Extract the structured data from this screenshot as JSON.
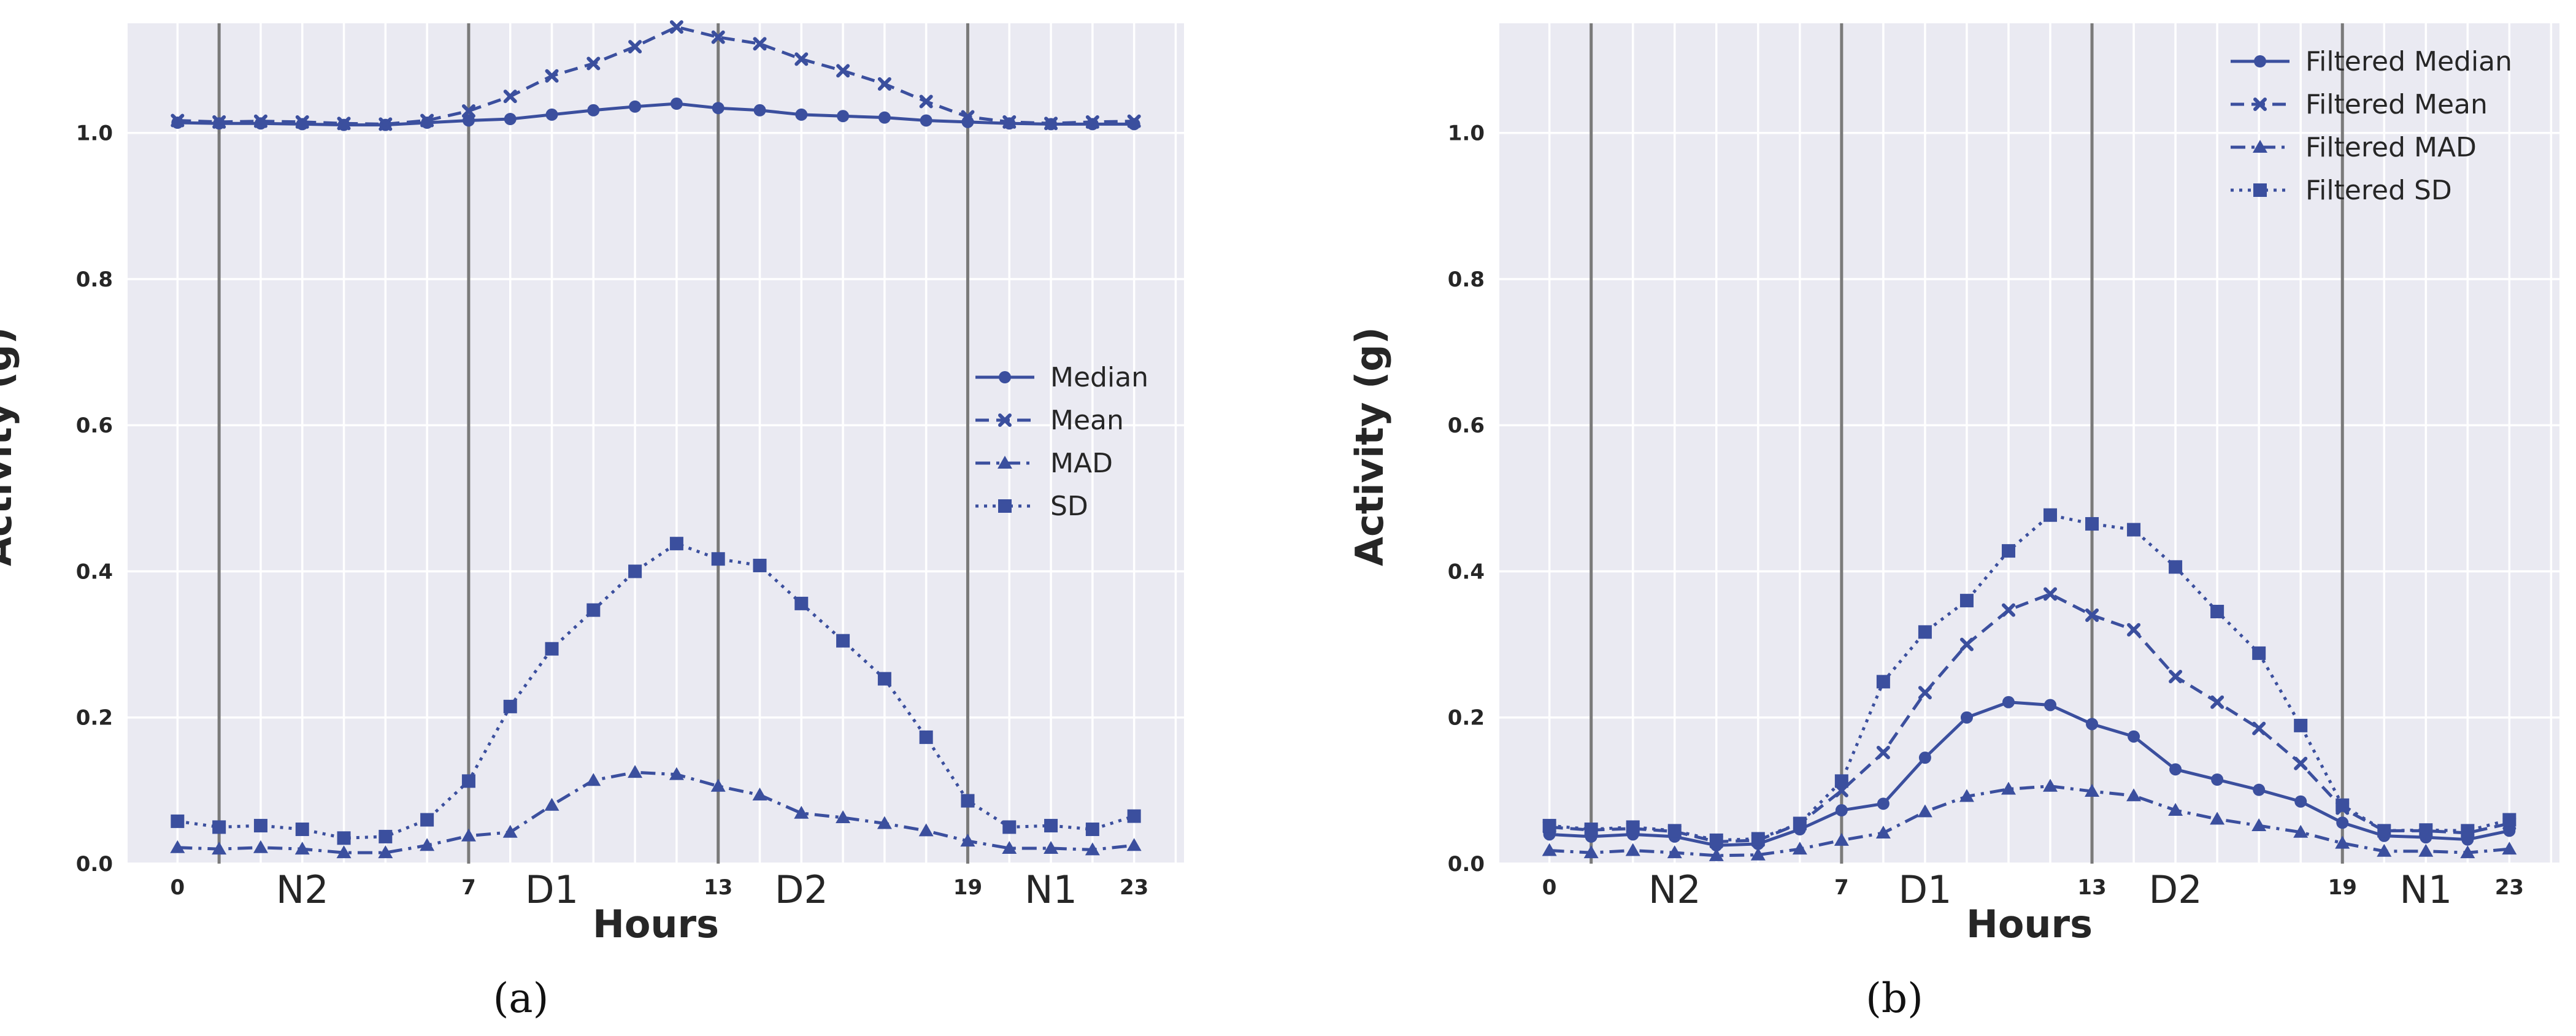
{
  "colors": {
    "series": "#3b4f9e",
    "background": "#eaeaf2",
    "grid": "#ffffff",
    "vline": "#7a7a7a"
  },
  "chart_data": [
    {
      "type": "line",
      "caption": "(a)",
      "xlabel": "Hours",
      "ylabel": "Activity (g)",
      "xlim": [
        -1.2,
        24.2
      ],
      "ylim": [
        0,
        1.15
      ],
      "yticks": [
        0.0,
        0.2,
        0.4,
        0.6,
        0.8,
        1.0
      ],
      "ytick_labels": [
        "0.0",
        "0.2",
        "0.4",
        "0.6",
        "0.8",
        "1.0"
      ],
      "xticks": [
        0,
        7,
        13,
        19,
        23
      ],
      "xtick_labels": [
        "0",
        "7",
        "13",
        "19",
        "23"
      ],
      "vlines": [
        1,
        7,
        13,
        19
      ],
      "period_labels": [
        {
          "x": 3,
          "label": "N2"
        },
        {
          "x": 9,
          "label": "D1"
        },
        {
          "x": 15,
          "label": "D2"
        },
        {
          "x": 21,
          "label": "N1"
        }
      ],
      "legend_position": "center-right",
      "x": [
        0,
        1,
        2,
        3,
        4,
        5,
        6,
        7,
        8,
        9,
        10,
        11,
        12,
        13,
        14,
        15,
        16,
        17,
        18,
        19,
        20,
        21,
        22,
        23
      ],
      "series": [
        {
          "name": "Median",
          "marker": "circle",
          "dash": "solid",
          "values": [
            1.014,
            1.013,
            1.013,
            1.012,
            1.011,
            1.011,
            1.014,
            1.017,
            1.019,
            1.025,
            1.031,
            1.036,
            1.04,
            1.034,
            1.031,
            1.025,
            1.023,
            1.021,
            1.017,
            1.015,
            1.013,
            1.012,
            1.012,
            1.012
          ]
        },
        {
          "name": "Mean",
          "marker": "x",
          "dash": "dashed",
          "values": [
            1.017,
            1.015,
            1.016,
            1.015,
            1.013,
            1.012,
            1.017,
            1.03,
            1.05,
            1.078,
            1.095,
            1.118,
            1.145,
            1.131,
            1.122,
            1.101,
            1.085,
            1.067,
            1.043,
            1.022,
            1.015,
            1.013,
            1.015,
            1.016
          ]
        },
        {
          "name": "MAD",
          "marker": "triangle",
          "dash": "dashdot",
          "values": [
            0.022,
            0.02,
            0.022,
            0.02,
            0.015,
            0.015,
            0.025,
            0.038,
            0.043,
            0.08,
            0.114,
            0.125,
            0.122,
            0.106,
            0.094,
            0.069,
            0.063,
            0.055,
            0.045,
            0.031,
            0.021,
            0.021,
            0.019,
            0.025
          ]
        },
        {
          "name": "SD",
          "marker": "square",
          "dash": "dotted",
          "values": [
            0.058,
            0.05,
            0.052,
            0.047,
            0.035,
            0.037,
            0.06,
            0.113,
            0.215,
            0.294,
            0.347,
            0.4,
            0.438,
            0.417,
            0.408,
            0.356,
            0.305,
            0.253,
            0.173,
            0.086,
            0.05,
            0.052,
            0.047,
            0.065
          ]
        }
      ]
    },
    {
      "type": "line",
      "caption": "(b)",
      "xlabel": "Hours",
      "ylabel": "Activity (g)",
      "xlim": [
        -1.2,
        24.2
      ],
      "ylim": [
        0,
        1.15
      ],
      "yticks": [
        0.0,
        0.2,
        0.4,
        0.6,
        0.8,
        1.0
      ],
      "ytick_labels": [
        "0.0",
        "0.2",
        "0.4",
        "0.6",
        "0.8",
        "1.0"
      ],
      "xticks": [
        0,
        7,
        13,
        19,
        23
      ],
      "xtick_labels": [
        "0",
        "7",
        "13",
        "19",
        "23"
      ],
      "vlines": [
        1,
        7,
        13,
        19
      ],
      "period_labels": [
        {
          "x": 3,
          "label": "N2"
        },
        {
          "x": 9,
          "label": "D1"
        },
        {
          "x": 15,
          "label": "D2"
        },
        {
          "x": 21,
          "label": "N1"
        }
      ],
      "legend_position": "top-right",
      "x": [
        0,
        1,
        2,
        3,
        4,
        5,
        6,
        7,
        8,
        9,
        10,
        11,
        12,
        13,
        14,
        15,
        16,
        17,
        18,
        19,
        20,
        21,
        22,
        23
      ],
      "series": [
        {
          "name": "Filtered Median",
          "marker": "circle",
          "dash": "solid",
          "values": [
            0.04,
            0.037,
            0.04,
            0.037,
            0.025,
            0.027,
            0.047,
            0.073,
            0.082,
            0.145,
            0.2,
            0.221,
            0.217,
            0.191,
            0.174,
            0.129,
            0.115,
            0.101,
            0.085,
            0.056,
            0.038,
            0.036,
            0.033,
            0.045
          ]
        },
        {
          "name": "Filtered Mean",
          "marker": "x",
          "dash": "dashed",
          "values": [
            0.05,
            0.046,
            0.048,
            0.044,
            0.03,
            0.032,
            0.055,
            0.1,
            0.152,
            0.234,
            0.3,
            0.347,
            0.369,
            0.34,
            0.32,
            0.256,
            0.221,
            0.185,
            0.137,
            0.076,
            0.045,
            0.045,
            0.042,
            0.055
          ]
        },
        {
          "name": "Filtered MAD",
          "marker": "triangle",
          "dash": "dashdot",
          "values": [
            0.018,
            0.015,
            0.018,
            0.015,
            0.011,
            0.012,
            0.02,
            0.032,
            0.042,
            0.071,
            0.092,
            0.102,
            0.106,
            0.099,
            0.093,
            0.073,
            0.061,
            0.052,
            0.043,
            0.028,
            0.017,
            0.017,
            0.015,
            0.02
          ]
        },
        {
          "name": "Filtered SD",
          "marker": "square",
          "dash": "dotted",
          "values": [
            0.052,
            0.047,
            0.05,
            0.045,
            0.032,
            0.034,
            0.055,
            0.113,
            0.249,
            0.317,
            0.36,
            0.428,
            0.477,
            0.465,
            0.457,
            0.406,
            0.345,
            0.288,
            0.189,
            0.08,
            0.045,
            0.046,
            0.045,
            0.06
          ]
        }
      ]
    }
  ]
}
